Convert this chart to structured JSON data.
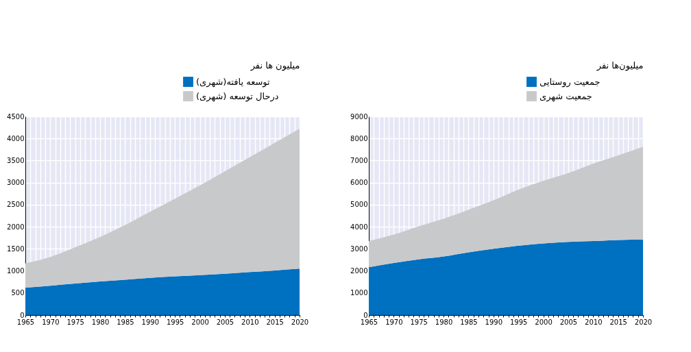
{
  "chart_data": [
    {
      "type": "area",
      "stacked": true,
      "ylabel": "میلیون ها نفر",
      "x": [
        1965,
        1970,
        1975,
        1980,
        1985,
        1990,
        1995,
        2000,
        2005,
        2010,
        2015,
        2020
      ],
      "xlim": [
        1965,
        2020
      ],
      "xticks": [
        1965,
        {
          "value": 1966,
          "label": null
        },
        {
          "value": 1967,
          "label": null
        },
        {
          "value": 1968,
          "label": null
        },
        {
          "value": 1969,
          "label": null
        },
        1970,
        {
          "value": 1971,
          "label": null
        },
        {
          "value": 1972,
          "label": null
        },
        {
          "value": 1973,
          "label": null
        },
        {
          "value": 1974,
          "label": null
        },
        1975,
        {
          "value": 1976,
          "label": null
        },
        {
          "value": 1977,
          "label": null
        },
        {
          "value": 1978,
          "label": null
        },
        {
          "value": 1979,
          "label": null
        },
        1980,
        {
          "value": 1981,
          "label": null
        },
        {
          "value": 1982,
          "label": null
        },
        {
          "value": 1983,
          "label": null
        },
        {
          "value": 1984,
          "label": null
        },
        1985,
        {
          "value": 1986,
          "label": null
        },
        {
          "value": 1987,
          "label": null
        },
        {
          "value": 1988,
          "label": null
        },
        {
          "value": 1989,
          "label": null
        },
        1990,
        {
          "value": 1991,
          "label": null
        },
        {
          "value": 1992,
          "label": null
        },
        {
          "value": 1993,
          "label": null
        },
        {
          "value": 1994,
          "label": null
        },
        1995,
        {
          "value": 1996,
          "label": null
        },
        {
          "value": 1997,
          "label": null
        },
        {
          "value": 1998,
          "label": null
        },
        {
          "value": 1999,
          "label": null
        },
        2000,
        {
          "value": 2001,
          "label": null
        },
        {
          "value": 2002,
          "label": null
        },
        {
          "value": 2003,
          "label": null
        },
        {
          "value": 2004,
          "label": null
        },
        2005,
        {
          "value": 2006,
          "label": null
        },
        {
          "value": 2007,
          "label": null
        },
        {
          "value": 2008,
          "label": null
        },
        {
          "value": 2009,
          "label": null
        },
        2010,
        {
          "value": 2011,
          "label": null
        },
        {
          "value": 2012,
          "label": null
        },
        {
          "value": 2013,
          "label": null
        },
        {
          "value": 2014,
          "label": null
        },
        2015,
        {
          "value": 2016,
          "label": null
        },
        {
          "value": 2017,
          "label": null
        },
        {
          "value": 2018,
          "label": null
        },
        {
          "value": 2019,
          "label": null
        },
        2020
      ],
      "ylim": [
        0,
        4500
      ],
      "yticks": [
        0,
        500,
        1000,
        1500,
        2000,
        2500,
        3000,
        3500,
        4000,
        4500
      ],
      "grid": true,
      "legend": "top right",
      "series": [
        {
          "name": "توسعه یافته(شهری)",
          "color": "#0070c0",
          "values": [
            620,
            665,
            715,
            760,
            800,
            840,
            875,
            905,
            935,
            975,
            1010,
            1050
          ]
        },
        {
          "name": "درحال توسعه (شهری)",
          "color": "#c8c9cb",
          "values": [
            550,
            650,
            820,
            1010,
            1240,
            1500,
            1760,
            2030,
            2320,
            2600,
            2890,
            3170
          ]
        }
      ]
    },
    {
      "type": "area",
      "stacked": true,
      "ylabel": "میلیون‌ها نفر",
      "x": [
        1965,
        1970,
        1975,
        1980,
        1985,
        1990,
        1995,
        2000,
        2005,
        2010,
        2015,
        2020
      ],
      "xlim": [
        1965,
        2020
      ],
      "xticks": [
        1965,
        {
          "value": 1966,
          "label": null
        },
        {
          "value": 1967,
          "label": null
        },
        {
          "value": 1968,
          "label": null
        },
        {
          "value": 1969,
          "label": null
        },
        1970,
        {
          "value": 1971,
          "label": null
        },
        {
          "value": 1972,
          "label": null
        },
        {
          "value": 1973,
          "label": null
        },
        {
          "value": 1974,
          "label": null
        },
        1975,
        {
          "value": 1976,
          "label": null
        },
        {
          "value": 1977,
          "label": null
        },
        {
          "value": 1978,
          "label": null
        },
        {
          "value": 1979,
          "label": null
        },
        1980,
        {
          "value": 1981,
          "label": null
        },
        {
          "value": 1982,
          "label": null
        },
        {
          "value": 1983,
          "label": null
        },
        {
          "value": 1984,
          "label": null
        },
        1985,
        {
          "value": 1986,
          "label": null
        },
        {
          "value": 1987,
          "label": null
        },
        {
          "value": 1988,
          "label": null
        },
        {
          "value": 1989,
          "label": null
        },
        1990,
        {
          "value": 1991,
          "label": null
        },
        {
          "value": 1992,
          "label": null
        },
        {
          "value": 1993,
          "label": null
        },
        {
          "value": 1994,
          "label": null
        },
        1995,
        {
          "value": 1996,
          "label": null
        },
        {
          "value": 1997,
          "label": null
        },
        {
          "value": 1998,
          "label": null
        },
        {
          "value": 1999,
          "label": null
        },
        2000,
        {
          "value": 2001,
          "label": null
        },
        {
          "value": 2002,
          "label": null
        },
        {
          "value": 2003,
          "label": null
        },
        {
          "value": 2004,
          "label": null
        },
        2005,
        {
          "value": 2006,
          "label": null
        },
        {
          "value": 2007,
          "label": null
        },
        {
          "value": 2008,
          "label": null
        },
        {
          "value": 2009,
          "label": null
        },
        2010,
        {
          "value": 2011,
          "label": null
        },
        {
          "value": 2012,
          "label": null
        },
        {
          "value": 2013,
          "label": null
        },
        {
          "value": 2014,
          "label": null
        },
        2015,
        {
          "value": 2016,
          "label": null
        },
        {
          "value": 2017,
          "label": null
        },
        {
          "value": 2018,
          "label": null
        },
        {
          "value": 2019,
          "label": null
        },
        2020
      ],
      "ylim": [
        0,
        9000
      ],
      "yticks": [
        0,
        1000,
        2000,
        3000,
        4000,
        5000,
        6000,
        7000,
        8000,
        9000
      ],
      "grid": true,
      "legend": "top right",
      "series": [
        {
          "name": "جمعیت روستایی",
          "color": "#0070c0",
          "values": [
            2165,
            2360,
            2520,
            2650,
            2840,
            3000,
            3140,
            3240,
            3310,
            3350,
            3400,
            3410
          ]
        },
        {
          "name": "جمعیت شهری",
          "color": "#c8c9cb",
          "values": [
            1190,
            1285,
            1500,
            1710,
            1930,
            2200,
            2540,
            2840,
            3120,
            3510,
            3830,
            4220
          ]
        }
      ]
    }
  ]
}
